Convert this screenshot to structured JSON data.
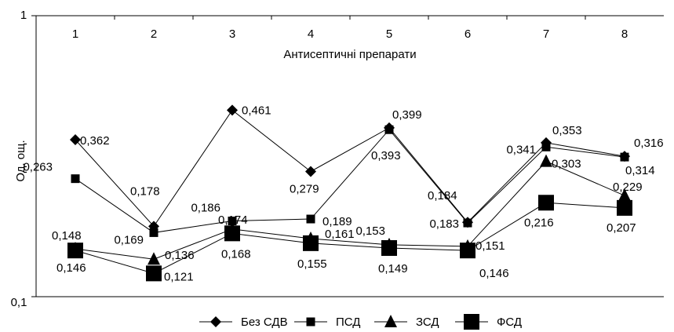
{
  "chart_data": {
    "type": "line",
    "y_scale": "log",
    "ylim": [
      0.1,
      1
    ],
    "yticks": [
      "0,1",
      "1"
    ],
    "ylabel": "Од. ощ.",
    "xlabel": "Антисептичні препарати",
    "categories": [
      "1",
      "2",
      "3",
      "4",
      "5",
      "6",
      "7",
      "8"
    ],
    "x_axis_position": "top",
    "grid": false,
    "legend_position": "bottom",
    "series": [
      {
        "name": "Без СДВ",
        "marker": "diamond",
        "color": "#000000",
        "values": [
          0.362,
          0.178,
          0.461,
          0.279,
          0.399,
          0.184,
          0.353,
          0.316
        ],
        "labels": [
          "0,362",
          "0,178",
          "0,461",
          "0,279",
          "0,399",
          "0,184",
          "0,353",
          "0,316"
        ]
      },
      {
        "name": "ПСД",
        "marker": "square-small",
        "color": "#000000",
        "values": [
          0.263,
          0.169,
          0.186,
          0.189,
          0.393,
          0.183,
          0.341,
          0.314
        ],
        "labels": [
          "0,263",
          "0,169",
          "0,186",
          "0,189",
          "0,393",
          "0,183",
          "0,341",
          "0,314"
        ]
      },
      {
        "name": "ЗСД",
        "marker": "triangle",
        "color": "#000000",
        "values": [
          0.148,
          0.136,
          0.174,
          0.161,
          0.153,
          0.151,
          0.303,
          0.229
        ],
        "labels": [
          "0,148",
          "0,136",
          "0,174",
          "0,161",
          "0,153",
          "0,151",
          "0,303",
          "0,229"
        ]
      },
      {
        "name": "ФСД",
        "marker": "square-large",
        "color": "#000000",
        "values": [
          0.146,
          0.121,
          0.168,
          0.155,
          0.149,
          0.146,
          0.216,
          0.207
        ],
        "labels": [
          "0,146",
          "0,121",
          "0,168",
          "0,155",
          "0,149",
          "0,146",
          "0,216",
          "0,207"
        ]
      }
    ]
  }
}
